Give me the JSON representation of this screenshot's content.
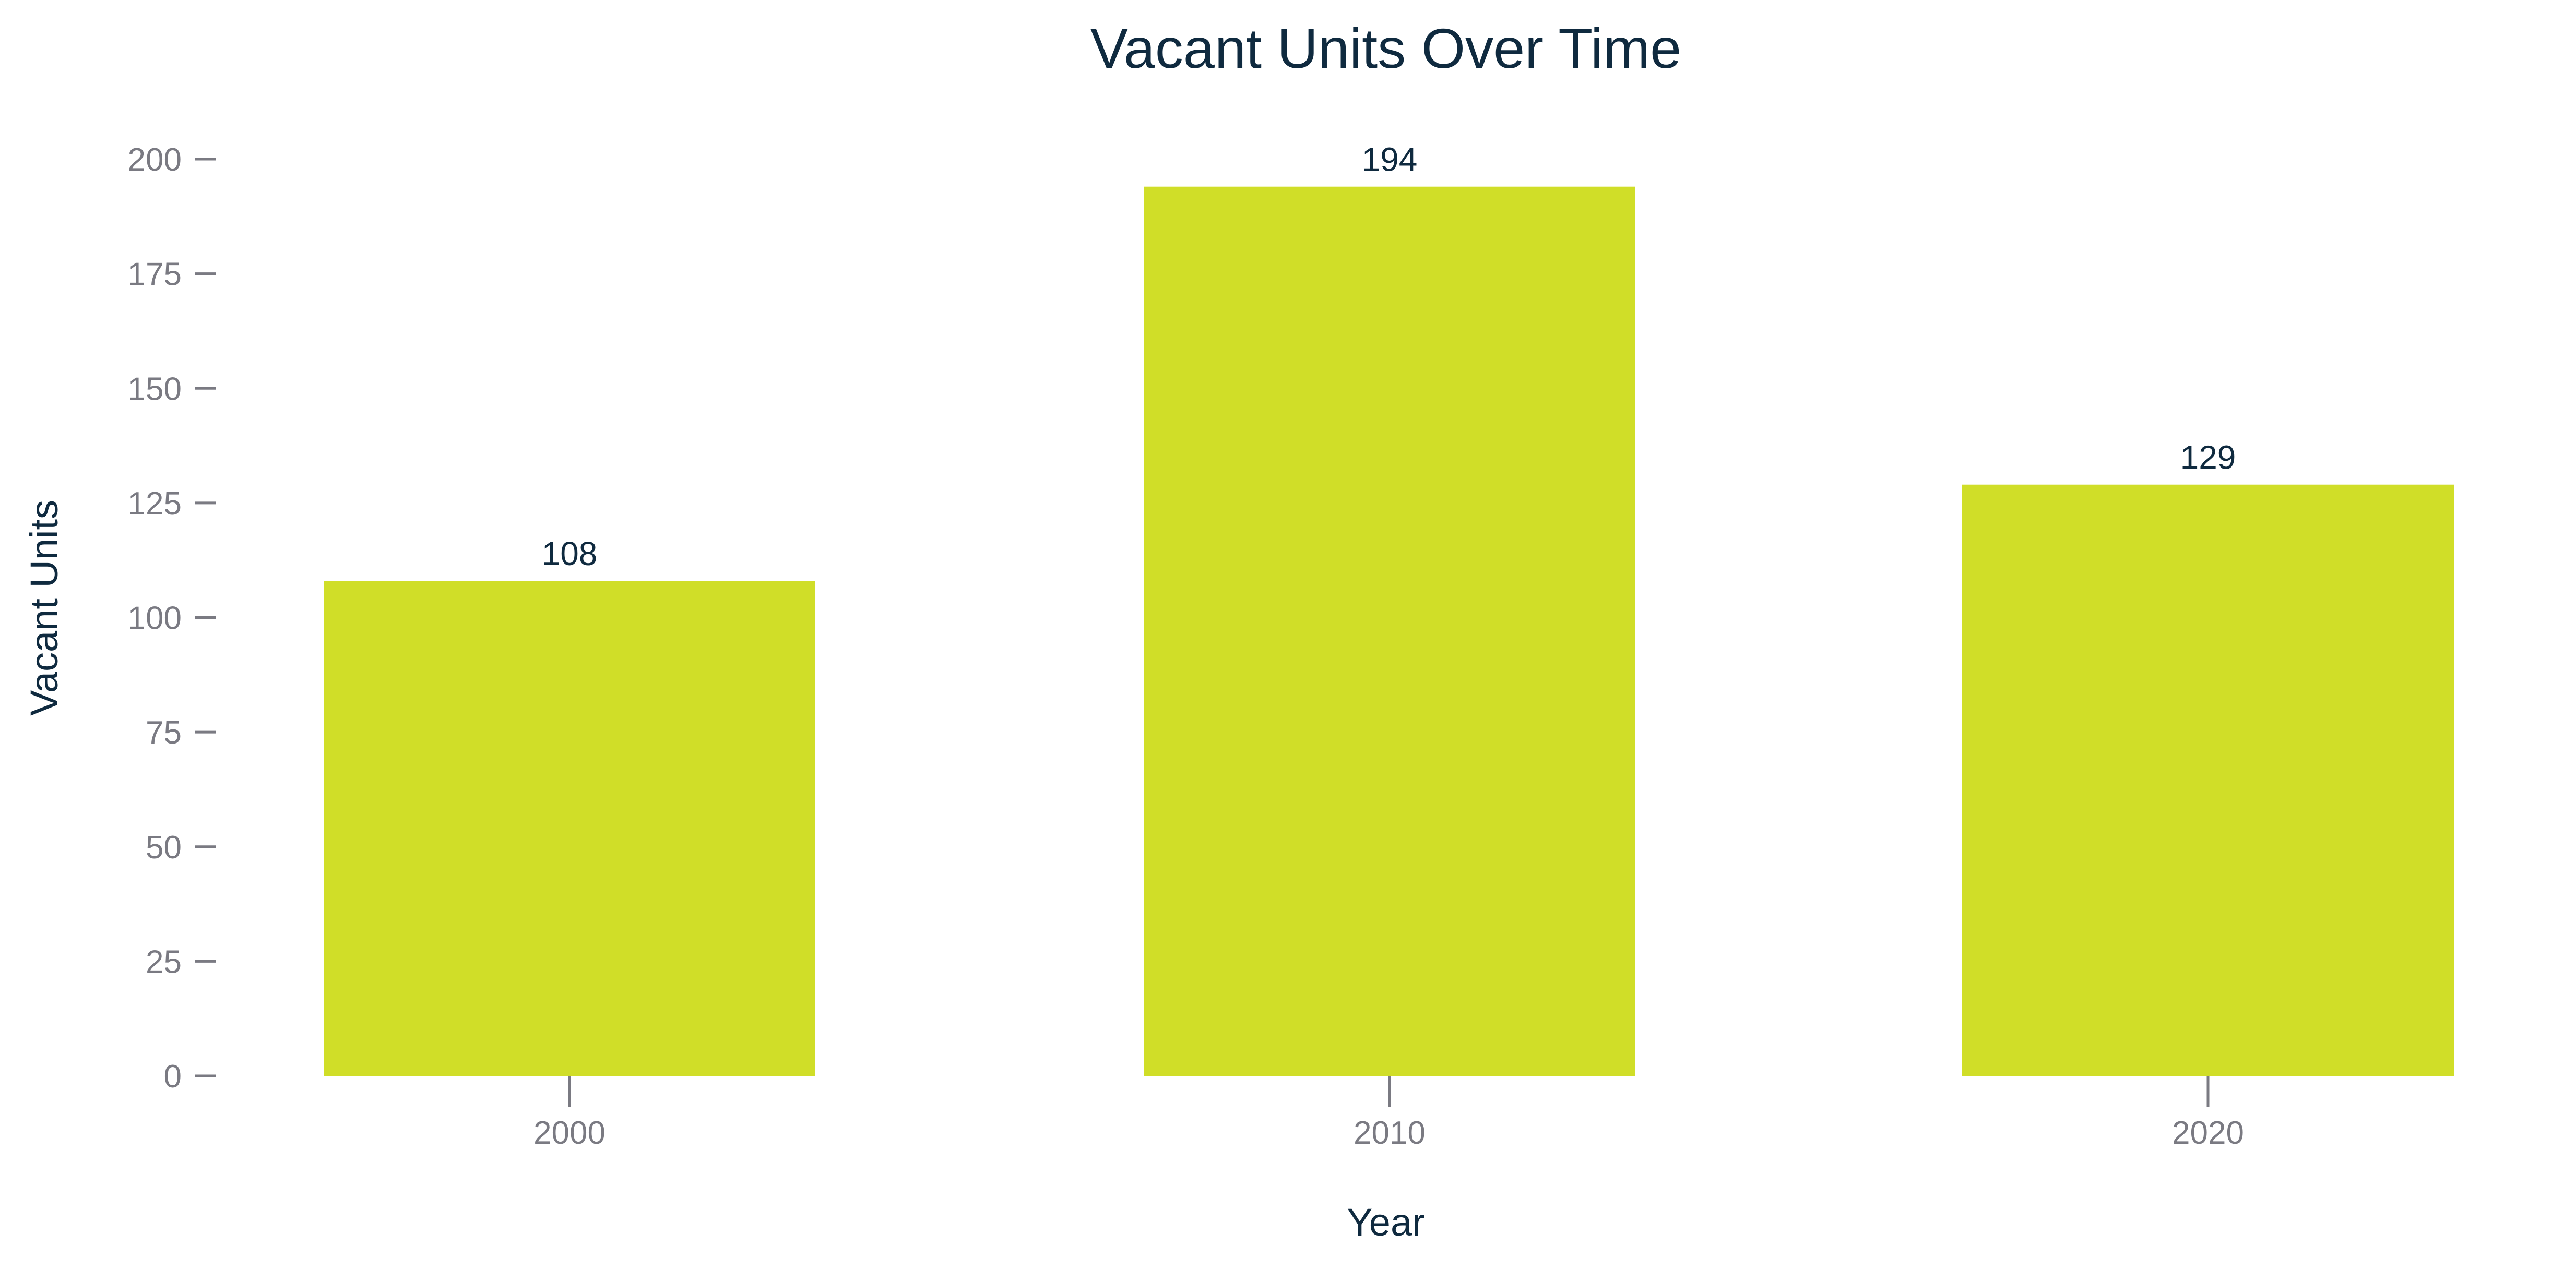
{
  "chart_data": {
    "type": "bar",
    "title": "Vacant Units Over Time",
    "xlabel": "Year",
    "ylabel": "Vacant Units",
    "categories": [
      "2000",
      "2010",
      "2020"
    ],
    "values": [
      108,
      194,
      129
    ],
    "ylim": [
      0,
      200
    ],
    "yticks": [
      0,
      25,
      50,
      75,
      100,
      125,
      150,
      175,
      200
    ],
    "grid": false,
    "legend": "none",
    "colors": {
      "bar": "#d0de28",
      "title": "#0f2a3f",
      "ticks": "#7a7a82"
    }
  }
}
